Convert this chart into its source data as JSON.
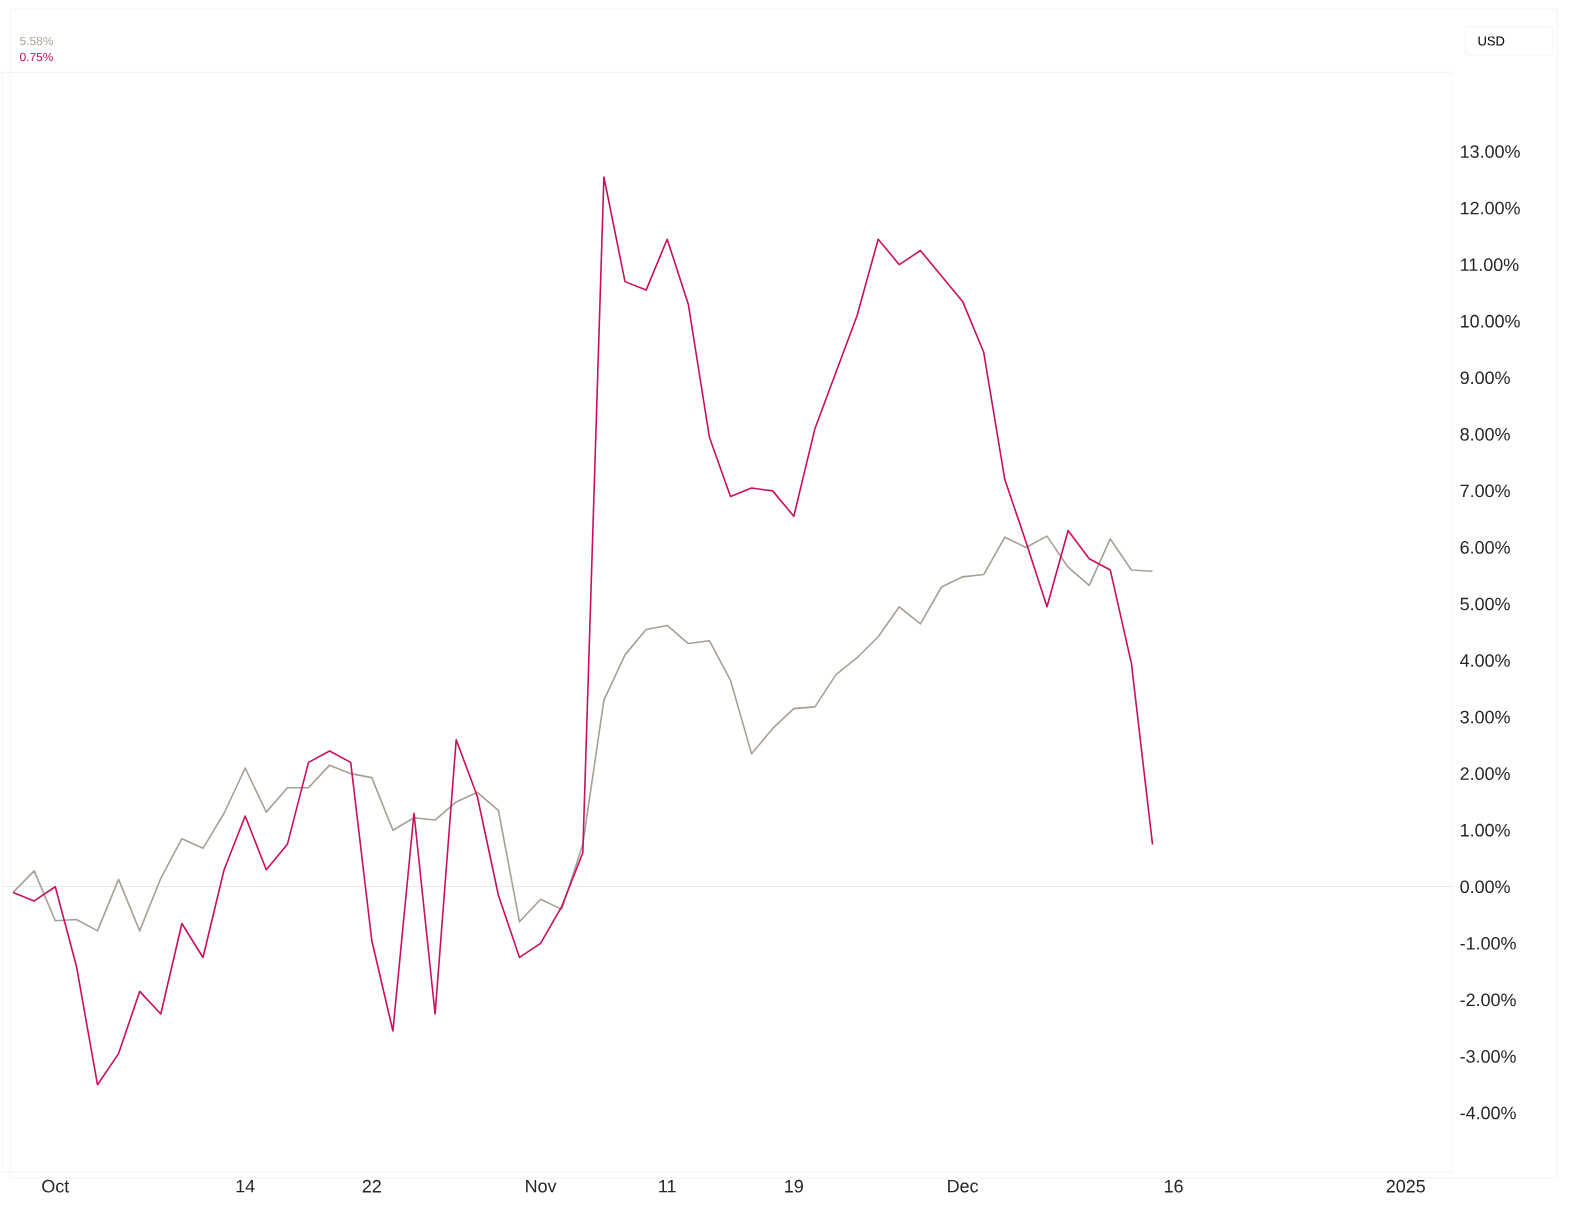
{
  "chart_data": {
    "type": "line",
    "categories": [
      null,
      null,
      "Oct",
      null,
      null,
      null,
      null,
      null,
      null,
      null,
      null,
      "14",
      null,
      null,
      null,
      null,
      null,
      "22",
      null,
      null,
      null,
      null,
      null,
      null,
      null,
      "Nov",
      null,
      null,
      null,
      null,
      null,
      "11",
      null,
      null,
      null,
      null,
      null,
      "19",
      null,
      null,
      null,
      null,
      null,
      null,
      null,
      "Dec",
      null,
      null,
      null,
      null,
      null,
      null,
      null,
      null,
      null,
      "16",
      null,
      null,
      null,
      null,
      null,
      null,
      null,
      null,
      null,
      null,
      "2025"
    ],
    "series": [
      {
        "color": "#a8a096",
        "values": [
          -0.1,
          0.28,
          -0.6,
          -0.58,
          -0.78,
          0.13,
          -0.78,
          0.15,
          0.85,
          0.68,
          1.3,
          2.1,
          1.32,
          1.75,
          1.75,
          2.15,
          2.0,
          1.93,
          1.0,
          1.22,
          1.18,
          1.5,
          1.67,
          1.35,
          -0.62,
          -0.22,
          -0.4,
          0.75,
          3.3,
          4.1,
          4.55,
          4.62,
          4.3,
          4.35,
          3.65,
          2.35,
          2.8,
          3.15,
          3.18,
          3.75,
          4.05,
          4.42,
          4.95,
          4.65,
          5.3,
          5.48,
          5.52,
          6.18,
          6.0,
          6.2,
          5.65,
          5.33,
          6.15,
          5.6,
          5.58,
          null,
          null,
          null,
          null,
          null,
          null,
          null,
          null,
          null,
          null,
          null,
          null
        ]
      },
      {
        "color": "#c8105f",
        "values": [
          -0.1,
          -0.25,
          0,
          -1.4,
          -3.5,
          -2.95,
          -1.85,
          -2.25,
          -0.65,
          -1.25,
          0.3,
          1.25,
          0.3,
          0.75,
          2.2,
          2.4,
          2.2,
          -0.95,
          -2.55,
          1.3,
          -2.25,
          2.6,
          1.6,
          -0.15,
          -1.25,
          -1.0,
          -0.35,
          0.6,
          12.55,
          10.7,
          10.55,
          11.45,
          10.3,
          7.95,
          6.9,
          7.05,
          7.0,
          6.55,
          8.1,
          9.1,
          10.1,
          11.45,
          11.0,
          11.25,
          10.8,
          10.35,
          9.45,
          7.2,
          6.1,
          4.95,
          6.3,
          5.8,
          5.6,
          3.95,
          0.75,
          null,
          null,
          null,
          null,
          null,
          null,
          null,
          null,
          null,
          null,
          null,
          null
        ]
      }
    ],
    "ylim": [
      -5.05,
      14.4
    ],
    "yticks": [
      {
        "value": -4,
        "label": "-4.00%"
      },
      {
        "value": -3,
        "label": "-3.00%"
      },
      {
        "value": -2,
        "label": "-2.00%"
      },
      {
        "value": -1,
        "label": "-1.00%"
      },
      {
        "value": 0,
        "label": "0.00%"
      },
      {
        "value": 1,
        "label": "1.00%"
      },
      {
        "value": 2,
        "label": "2.00%"
      },
      {
        "value": 3,
        "label": "3.00%"
      },
      {
        "value": 4,
        "label": "4.00%"
      },
      {
        "value": 5,
        "label": "5.00%"
      },
      {
        "value": 6,
        "label": "6.00%"
      },
      {
        "value": 7,
        "label": "7.00%"
      },
      {
        "value": 8,
        "label": "8.00%"
      },
      {
        "value": 9,
        "label": "9.00%"
      },
      {
        "value": 10,
        "label": "10.00%"
      },
      {
        "value": 11,
        "label": "11.00%"
      },
      {
        "value": 12,
        "label": "12.00%"
      },
      {
        "value": 13,
        "label": "13.00%"
      }
    ],
    "ref_lines": [
      {
        "axis": "y",
        "value": 0,
        "color": "#b8b8b8"
      }
    ],
    "annotations": [
      "USD",
      "5.58%",
      "0.75%"
    ],
    "grid": false,
    "marker": "none",
    "line_style": "solid"
  }
}
